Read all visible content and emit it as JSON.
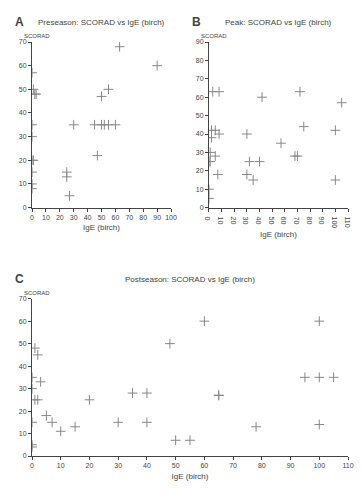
{
  "chart_data": [
    {
      "type": "scatter",
      "title": "Preseason: SCORAD vs IgE (birch)",
      "xlabel": "IgE (birch)",
      "ylabel": "SCORAD",
      "annotations": [
        "A"
      ],
      "x": [
        0,
        0,
        0,
        0,
        0,
        0,
        0,
        1,
        1,
        2,
        3,
        25,
        25,
        27,
        30,
        45,
        47,
        50,
        50,
        52,
        55,
        55,
        60,
        63,
        90
      ],
      "values": [
        8,
        10,
        15,
        20,
        30,
        35,
        57,
        20,
        50,
        48,
        48,
        13,
        15,
        5,
        35,
        35,
        22,
        35,
        47,
        35,
        35,
        50,
        35,
        68,
        60
      ],
      "xlim": [
        0,
        100
      ],
      "ylim": [
        0,
        70
      ],
      "xticks": [
        0,
        10,
        20,
        30,
        40,
        50,
        60,
        70,
        80,
        90,
        100
      ],
      "yticks": [
        0,
        10,
        20,
        30,
        40,
        50,
        60,
        70
      ],
      "color": "#888888",
      "marker": "plus",
      "grid": false
    },
    {
      "type": "scatter",
      "title": "Peak: SCORAD vs IgE (birch)",
      "xlabel": "IgE (birch)",
      "ylabel": "SCORAD",
      "annotations": [
        "B"
      ],
      "x": [
        0,
        0,
        0,
        1,
        1,
        2,
        2,
        3,
        5,
        5,
        7,
        8,
        8,
        30,
        30,
        32,
        35,
        40,
        42,
        57,
        68,
        70,
        72,
        75,
        100,
        100,
        105
      ],
      "values": [
        5,
        10,
        25,
        25,
        30,
        38,
        42,
        63,
        28,
        42,
        18,
        40,
        63,
        18,
        40,
        25,
        15,
        25,
        60,
        35,
        28,
        28,
        63,
        44,
        15,
        42,
        57
      ],
      "xlim": [
        0,
        110
      ],
      "ylim": [
        0,
        90
      ],
      "xticks": [
        0,
        10,
        20,
        30,
        40,
        50,
        60,
        70,
        80,
        90,
        100,
        110
      ],
      "yticks": [
        0,
        10,
        20,
        30,
        40,
        50,
        60,
        70,
        80,
        90
      ],
      "color": "#888888",
      "marker": "plus",
      "grid": false
    },
    {
      "type": "scatter",
      "title": "Postseason: SCORAD vs IgE (birch)",
      "xlabel": "IgE (birch)",
      "ylabel": "SCORAD",
      "annotations": [
        "C"
      ],
      "x": [
        0,
        0,
        0,
        0,
        0,
        1,
        1,
        2,
        2,
        3,
        5,
        7,
        10,
        15,
        20,
        30,
        35,
        40,
        40,
        48,
        50,
        55,
        60,
        65,
        65,
        78,
        95,
        100,
        100,
        100,
        105
      ],
      "values": [
        4,
        5,
        15,
        30,
        35,
        25,
        48,
        25,
        45,
        33,
        18,
        15,
        11,
        13,
        25,
        15,
        28,
        15,
        28,
        50,
        7,
        7,
        60,
        27,
        27,
        13,
        35,
        14,
        60,
        35,
        35
      ],
      "xlim": [
        0,
        110
      ],
      "ylim": [
        0,
        70
      ],
      "xticks": [
        0,
        10,
        20,
        30,
        40,
        50,
        60,
        70,
        80,
        90,
        100,
        110
      ],
      "yticks": [
        0,
        10,
        20,
        30,
        40,
        50,
        60,
        70
      ],
      "color": "#888888",
      "marker": "plus",
      "grid": false
    }
  ]
}
